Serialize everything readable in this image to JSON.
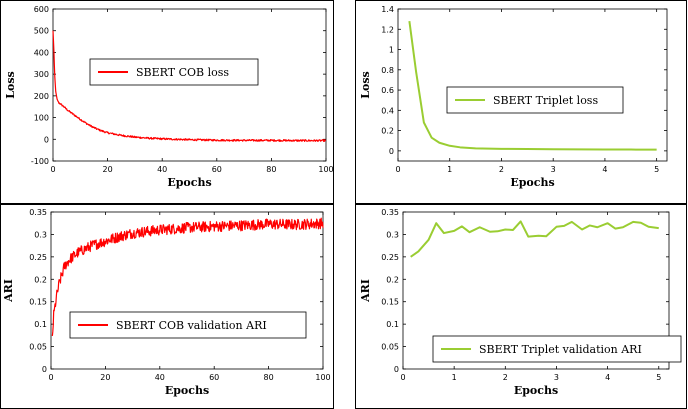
{
  "colors": {
    "cob": "#ff0000",
    "triplet": "#9acd32",
    "axis": "#000000",
    "frame": "#000000"
  },
  "chart_data": [
    {
      "id": "cob-loss",
      "type": "line",
      "xlabel": "Epochs",
      "ylabel": "Loss",
      "xlim": [
        0,
        100
      ],
      "ylim": [
        -100,
        600
      ],
      "xticks": [
        0,
        20,
        40,
        60,
        80,
        100
      ],
      "yticks": [
        -100,
        0,
        100,
        200,
        300,
        400,
        500,
        600
      ],
      "legend_placement": "center",
      "series": [
        {
          "name": "SBERT COB loss",
          "color": "#ff0000",
          "noise": 4,
          "x": [
            0,
            0.3,
            0.6,
            1,
            1.5,
            2,
            3,
            4,
            5,
            6,
            8,
            10,
            12,
            14,
            16,
            18,
            20,
            25,
            30,
            35,
            40,
            50,
            60,
            70,
            80,
            90,
            100
          ],
          "y": [
            500,
            420,
            300,
            220,
            185,
            170,
            160,
            150,
            138,
            128,
            110,
            92,
            75,
            60,
            48,
            38,
            30,
            18,
            10,
            5,
            2,
            -2,
            -4,
            -5,
            -5,
            -6,
            -6
          ]
        }
      ]
    },
    {
      "id": "triplet-loss",
      "type": "line",
      "xlabel": "Epochs",
      "ylabel": "Loss",
      "xlim": [
        0,
        5.2
      ],
      "ylim": [
        -0.1,
        1.4
      ],
      "xticks": [
        0,
        1,
        2,
        3,
        4,
        5
      ],
      "yticks": [
        0,
        0.2,
        0.4,
        0.6,
        0.8,
        1.0,
        1.2,
        1.4
      ],
      "legend_placement": "center",
      "series": [
        {
          "name": "SBERT Triplet loss",
          "color": "#9acd32",
          "noise": 0,
          "x": [
            0.22,
            0.35,
            0.5,
            0.65,
            0.8,
            1.0,
            1.2,
            1.5,
            2.0,
            2.5,
            3.0,
            3.5,
            4.0,
            4.5,
            5.0
          ],
          "y": [
            1.28,
            0.78,
            0.28,
            0.13,
            0.08,
            0.05,
            0.035,
            0.025,
            0.02,
            0.018,
            0.016,
            0.015,
            0.014,
            0.013,
            0.012
          ]
        }
      ]
    },
    {
      "id": "cob-ari",
      "type": "line",
      "xlabel": "Epochs",
      "ylabel": "ARI",
      "xlim": [
        0,
        100
      ],
      "ylim": [
        0,
        0.35
      ],
      "xticks": [
        0,
        20,
        40,
        60,
        80,
        100
      ],
      "yticks": [
        0,
        0.05,
        0.1,
        0.15,
        0.2,
        0.25,
        0.3,
        0.35
      ],
      "legend_placement": "bottom-right",
      "series": [
        {
          "name": "SBERT COB validation ARI",
          "color": "#ff0000",
          "noise": 0.012,
          "x": [
            0.5,
            1,
            2,
            3,
            4,
            5,
            7,
            10,
            15,
            20,
            25,
            30,
            40,
            50,
            60,
            70,
            80,
            90,
            100
          ],
          "y": [
            0.07,
            0.12,
            0.16,
            0.19,
            0.21,
            0.23,
            0.245,
            0.26,
            0.275,
            0.285,
            0.295,
            0.303,
            0.31,
            0.315,
            0.318,
            0.32,
            0.323,
            0.322,
            0.325
          ]
        }
      ]
    },
    {
      "id": "triplet-ari",
      "type": "line",
      "xlabel": "Epochs",
      "ylabel": "ARI",
      "xlim": [
        0,
        5.2
      ],
      "ylim": [
        0,
        0.35
      ],
      "xticks": [
        0,
        1,
        2,
        3,
        4,
        5
      ],
      "yticks": [
        0,
        0.05,
        0.1,
        0.15,
        0.2,
        0.25,
        0.3,
        0.35
      ],
      "legend_placement": "bottom-right",
      "series": [
        {
          "name": "SBERT Triplet validation ARI",
          "color": "#9acd32",
          "noise": 0,
          "x": [
            0.15,
            0.3,
            0.5,
            0.65,
            0.8,
            1.0,
            1.15,
            1.3,
            1.5,
            1.7,
            1.85,
            2.0,
            2.15,
            2.3,
            2.45,
            2.65,
            2.8,
            3.0,
            3.15,
            3.3,
            3.5,
            3.65,
            3.8,
            4.0,
            4.15,
            4.3,
            4.5,
            4.65,
            4.8,
            5.0
          ],
          "y": [
            0.25,
            0.262,
            0.288,
            0.325,
            0.303,
            0.308,
            0.318,
            0.305,
            0.316,
            0.306,
            0.307,
            0.311,
            0.31,
            0.329,
            0.295,
            0.297,
            0.296,
            0.317,
            0.319,
            0.328,
            0.311,
            0.32,
            0.316,
            0.325,
            0.313,
            0.316,
            0.328,
            0.326,
            0.317,
            0.314
          ]
        }
      ]
    }
  ]
}
